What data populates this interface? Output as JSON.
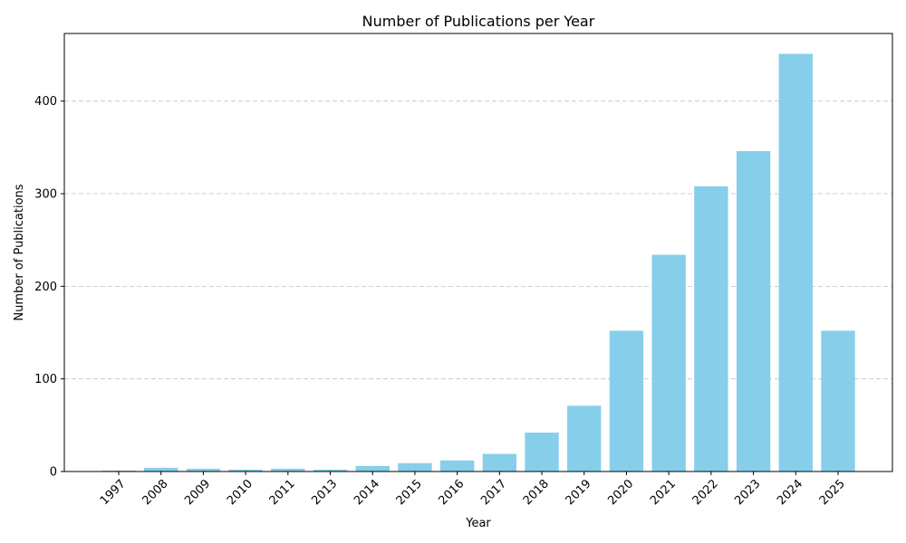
{
  "chart_data": {
    "type": "bar",
    "title": "Number of Publications per Year",
    "xlabel": "Year",
    "ylabel": "Number of Publications",
    "categories": [
      "1997",
      "2008",
      "2009",
      "2010",
      "2011",
      "2013",
      "2014",
      "2015",
      "2016",
      "2017",
      "2018",
      "2019",
      "2020",
      "2021",
      "2022",
      "2023",
      "2024",
      "2025"
    ],
    "values": [
      1,
      4,
      3,
      2,
      3,
      2,
      6,
      9,
      12,
      19,
      42,
      71,
      152,
      234,
      308,
      346,
      451,
      152
    ],
    "ylim": [
      0,
      473
    ],
    "yticks": [
      0,
      100,
      200,
      300,
      400
    ],
    "grid": "y-dashed",
    "bar_color": "#87ceeb",
    "legend": "none"
  }
}
